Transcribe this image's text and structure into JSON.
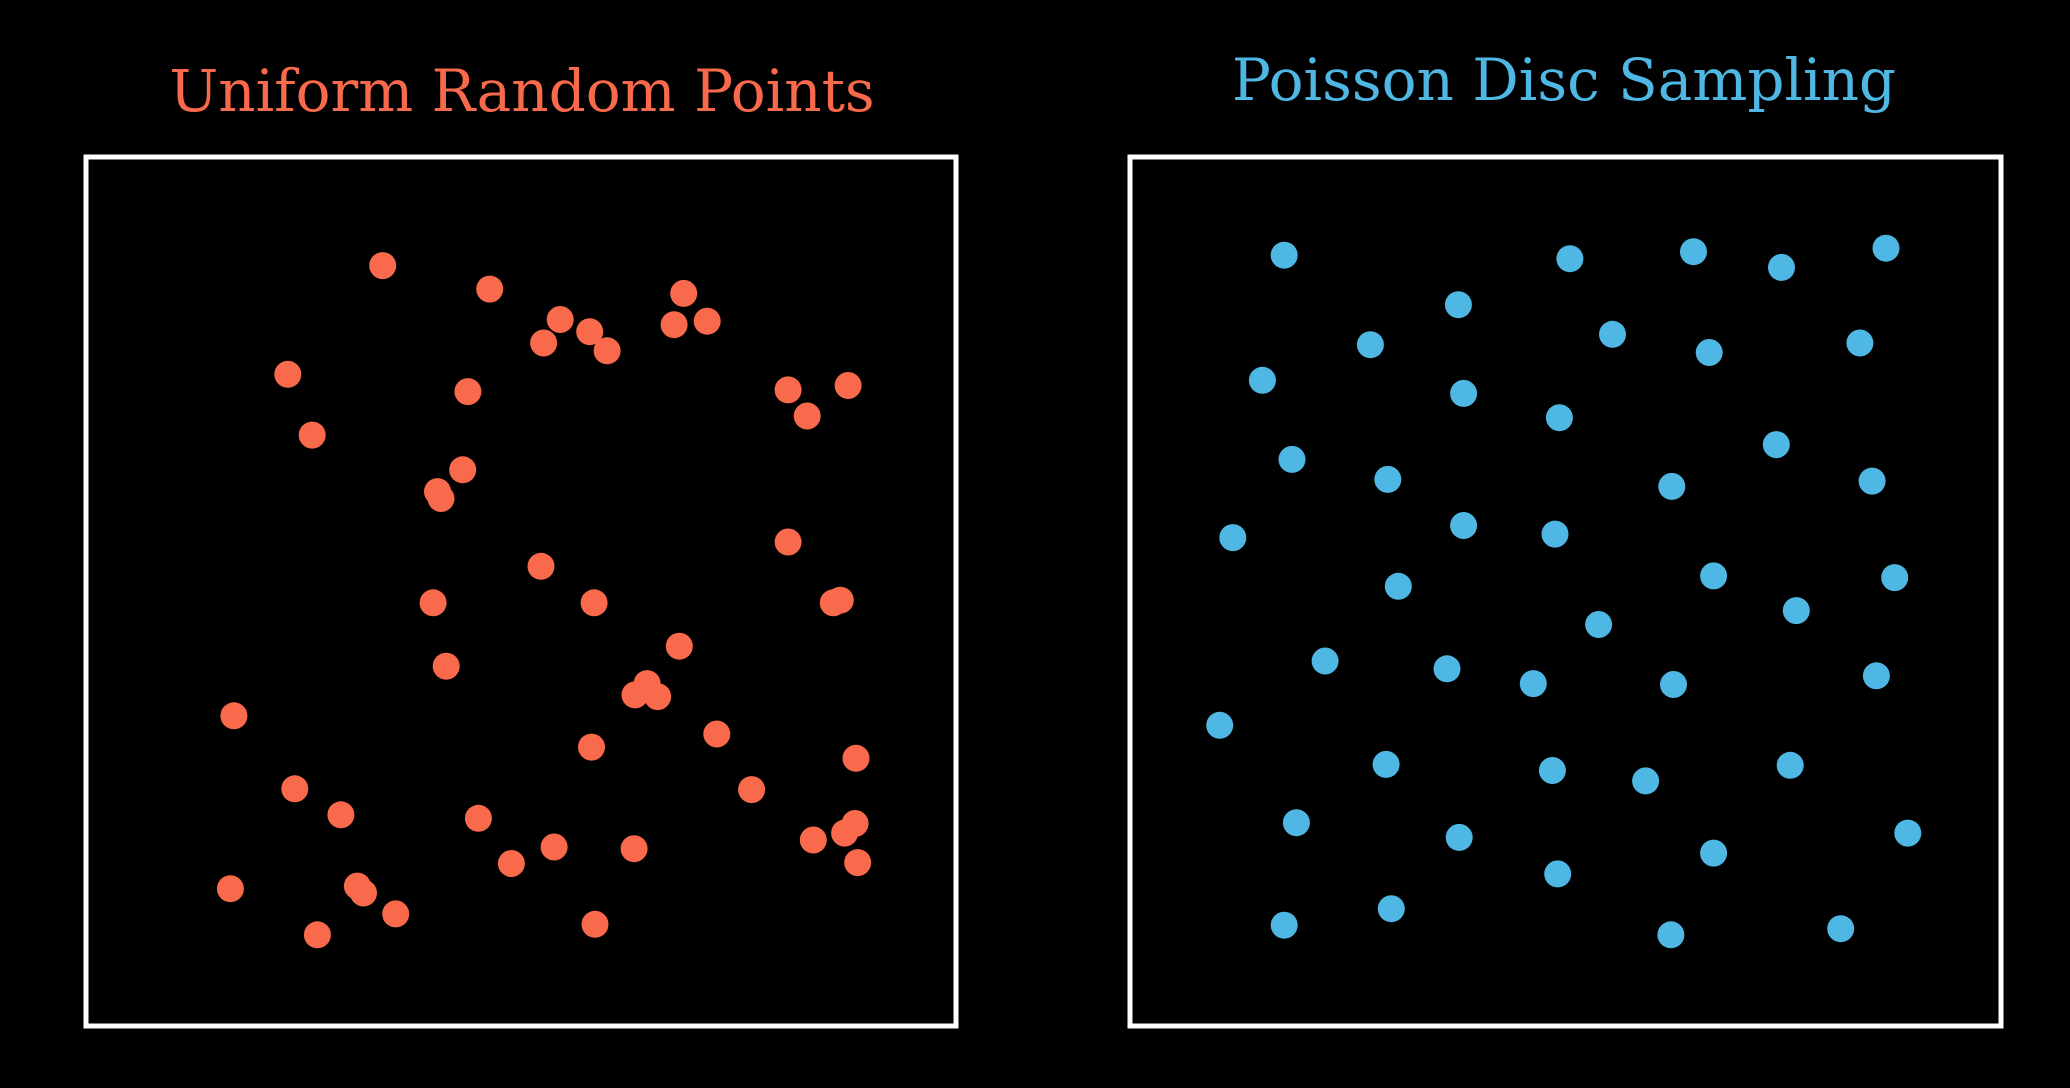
{
  "colors": {
    "background": "#000000",
    "frame": "#ffffff",
    "uniform": "#f9694b",
    "poisson": "#4fb7e3"
  },
  "panels": [
    {
      "id": "uniform",
      "title": "Uniform Random Points",
      "color": "#f9694b",
      "points": [
        [
          0.341,
          0.125
        ],
        [
          0.464,
          0.152
        ],
        [
          0.545,
          0.187
        ],
        [
          0.526,
          0.214
        ],
        [
          0.579,
          0.201
        ],
        [
          0.599,
          0.223
        ],
        [
          0.687,
          0.157
        ],
        [
          0.676,
          0.193
        ],
        [
          0.714,
          0.189
        ],
        [
          0.232,
          0.25
        ],
        [
          0.439,
          0.27
        ],
        [
          0.26,
          0.32
        ],
        [
          0.404,
          0.385
        ],
        [
          0.433,
          0.36
        ],
        [
          0.408,
          0.393
        ],
        [
          0.807,
          0.268
        ],
        [
          0.876,
          0.263
        ],
        [
          0.829,
          0.298
        ],
        [
          0.807,
          0.443
        ],
        [
          0.523,
          0.471
        ],
        [
          0.399,
          0.513
        ],
        [
          0.584,
          0.513
        ],
        [
          0.859,
          0.513
        ],
        [
          0.867,
          0.51
        ],
        [
          0.682,
          0.563
        ],
        [
          0.414,
          0.586
        ],
        [
          0.645,
          0.606
        ],
        [
          0.631,
          0.619
        ],
        [
          0.657,
          0.621
        ],
        [
          0.17,
          0.643
        ],
        [
          0.725,
          0.664
        ],
        [
          0.581,
          0.679
        ],
        [
          0.885,
          0.692
        ],
        [
          0.24,
          0.727
        ],
        [
          0.293,
          0.757
        ],
        [
          0.451,
          0.761
        ],
        [
          0.765,
          0.728
        ],
        [
          0.836,
          0.786
        ],
        [
          0.872,
          0.778
        ],
        [
          0.884,
          0.767
        ],
        [
          0.538,
          0.794
        ],
        [
          0.489,
          0.813
        ],
        [
          0.63,
          0.796
        ],
        [
          0.887,
          0.812
        ],
        [
          0.166,
          0.842
        ],
        [
          0.312,
          0.839
        ],
        [
          0.319,
          0.847
        ],
        [
          0.356,
          0.871
        ],
        [
          0.266,
          0.895
        ],
        [
          0.585,
          0.883
        ]
      ]
    },
    {
      "id": "poisson",
      "title": "Poisson Disc Sampling",
      "color": "#4fb7e3",
      "points": [
        [
          0.177,
          0.113
        ],
        [
          0.505,
          0.117
        ],
        [
          0.647,
          0.109
        ],
        [
          0.748,
          0.127
        ],
        [
          0.868,
          0.105
        ],
        [
          0.377,
          0.17
        ],
        [
          0.276,
          0.216
        ],
        [
          0.554,
          0.204
        ],
        [
          0.665,
          0.225
        ],
        [
          0.838,
          0.214
        ],
        [
          0.152,
          0.257
        ],
        [
          0.383,
          0.272
        ],
        [
          0.493,
          0.3
        ],
        [
          0.186,
          0.348
        ],
        [
          0.296,
          0.371
        ],
        [
          0.742,
          0.331
        ],
        [
          0.622,
          0.379
        ],
        [
          0.852,
          0.373
        ],
        [
          0.118,
          0.438
        ],
        [
          0.383,
          0.424
        ],
        [
          0.488,
          0.434
        ],
        [
          0.308,
          0.494
        ],
        [
          0.67,
          0.482
        ],
        [
          0.878,
          0.484
        ],
        [
          0.765,
          0.522
        ],
        [
          0.538,
          0.538
        ],
        [
          0.224,
          0.58
        ],
        [
          0.364,
          0.589
        ],
        [
          0.463,
          0.606
        ],
        [
          0.624,
          0.607
        ],
        [
          0.857,
          0.597
        ],
        [
          0.103,
          0.654
        ],
        [
          0.294,
          0.699
        ],
        [
          0.485,
          0.706
        ],
        [
          0.592,
          0.718
        ],
        [
          0.758,
          0.7
        ],
        [
          0.191,
          0.766
        ],
        [
          0.378,
          0.783
        ],
        [
          0.491,
          0.825
        ],
        [
          0.67,
          0.801
        ],
        [
          0.893,
          0.778
        ],
        [
          0.177,
          0.884
        ],
        [
          0.3,
          0.865
        ],
        [
          0.621,
          0.895
        ],
        [
          0.816,
          0.888
        ]
      ]
    }
  ]
}
